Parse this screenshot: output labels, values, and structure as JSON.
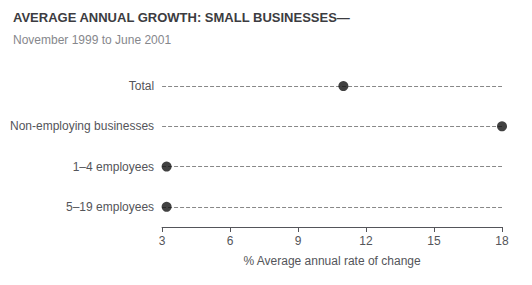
{
  "chart_data": {
    "type": "scatter",
    "orientation": "horizontal",
    "title": "AVERAGE ANNUAL GROWTH: SMALL BUSINESSES—",
    "subtitle": "November 1999 to June 2001",
    "categories": [
      "5–19 employees",
      "1–4 employees",
      "Non-employing businesses",
      "Total"
    ],
    "values": [
      3.2,
      3.2,
      18.0,
      11.0
    ],
    "color": "#111111",
    "marker": "circle",
    "x_label": "% Average annual rate of change",
    "xlim": [
      3,
      18
    ],
    "xticks": [
      3,
      6,
      9,
      12,
      15,
      18
    ],
    "grid": true
  }
}
